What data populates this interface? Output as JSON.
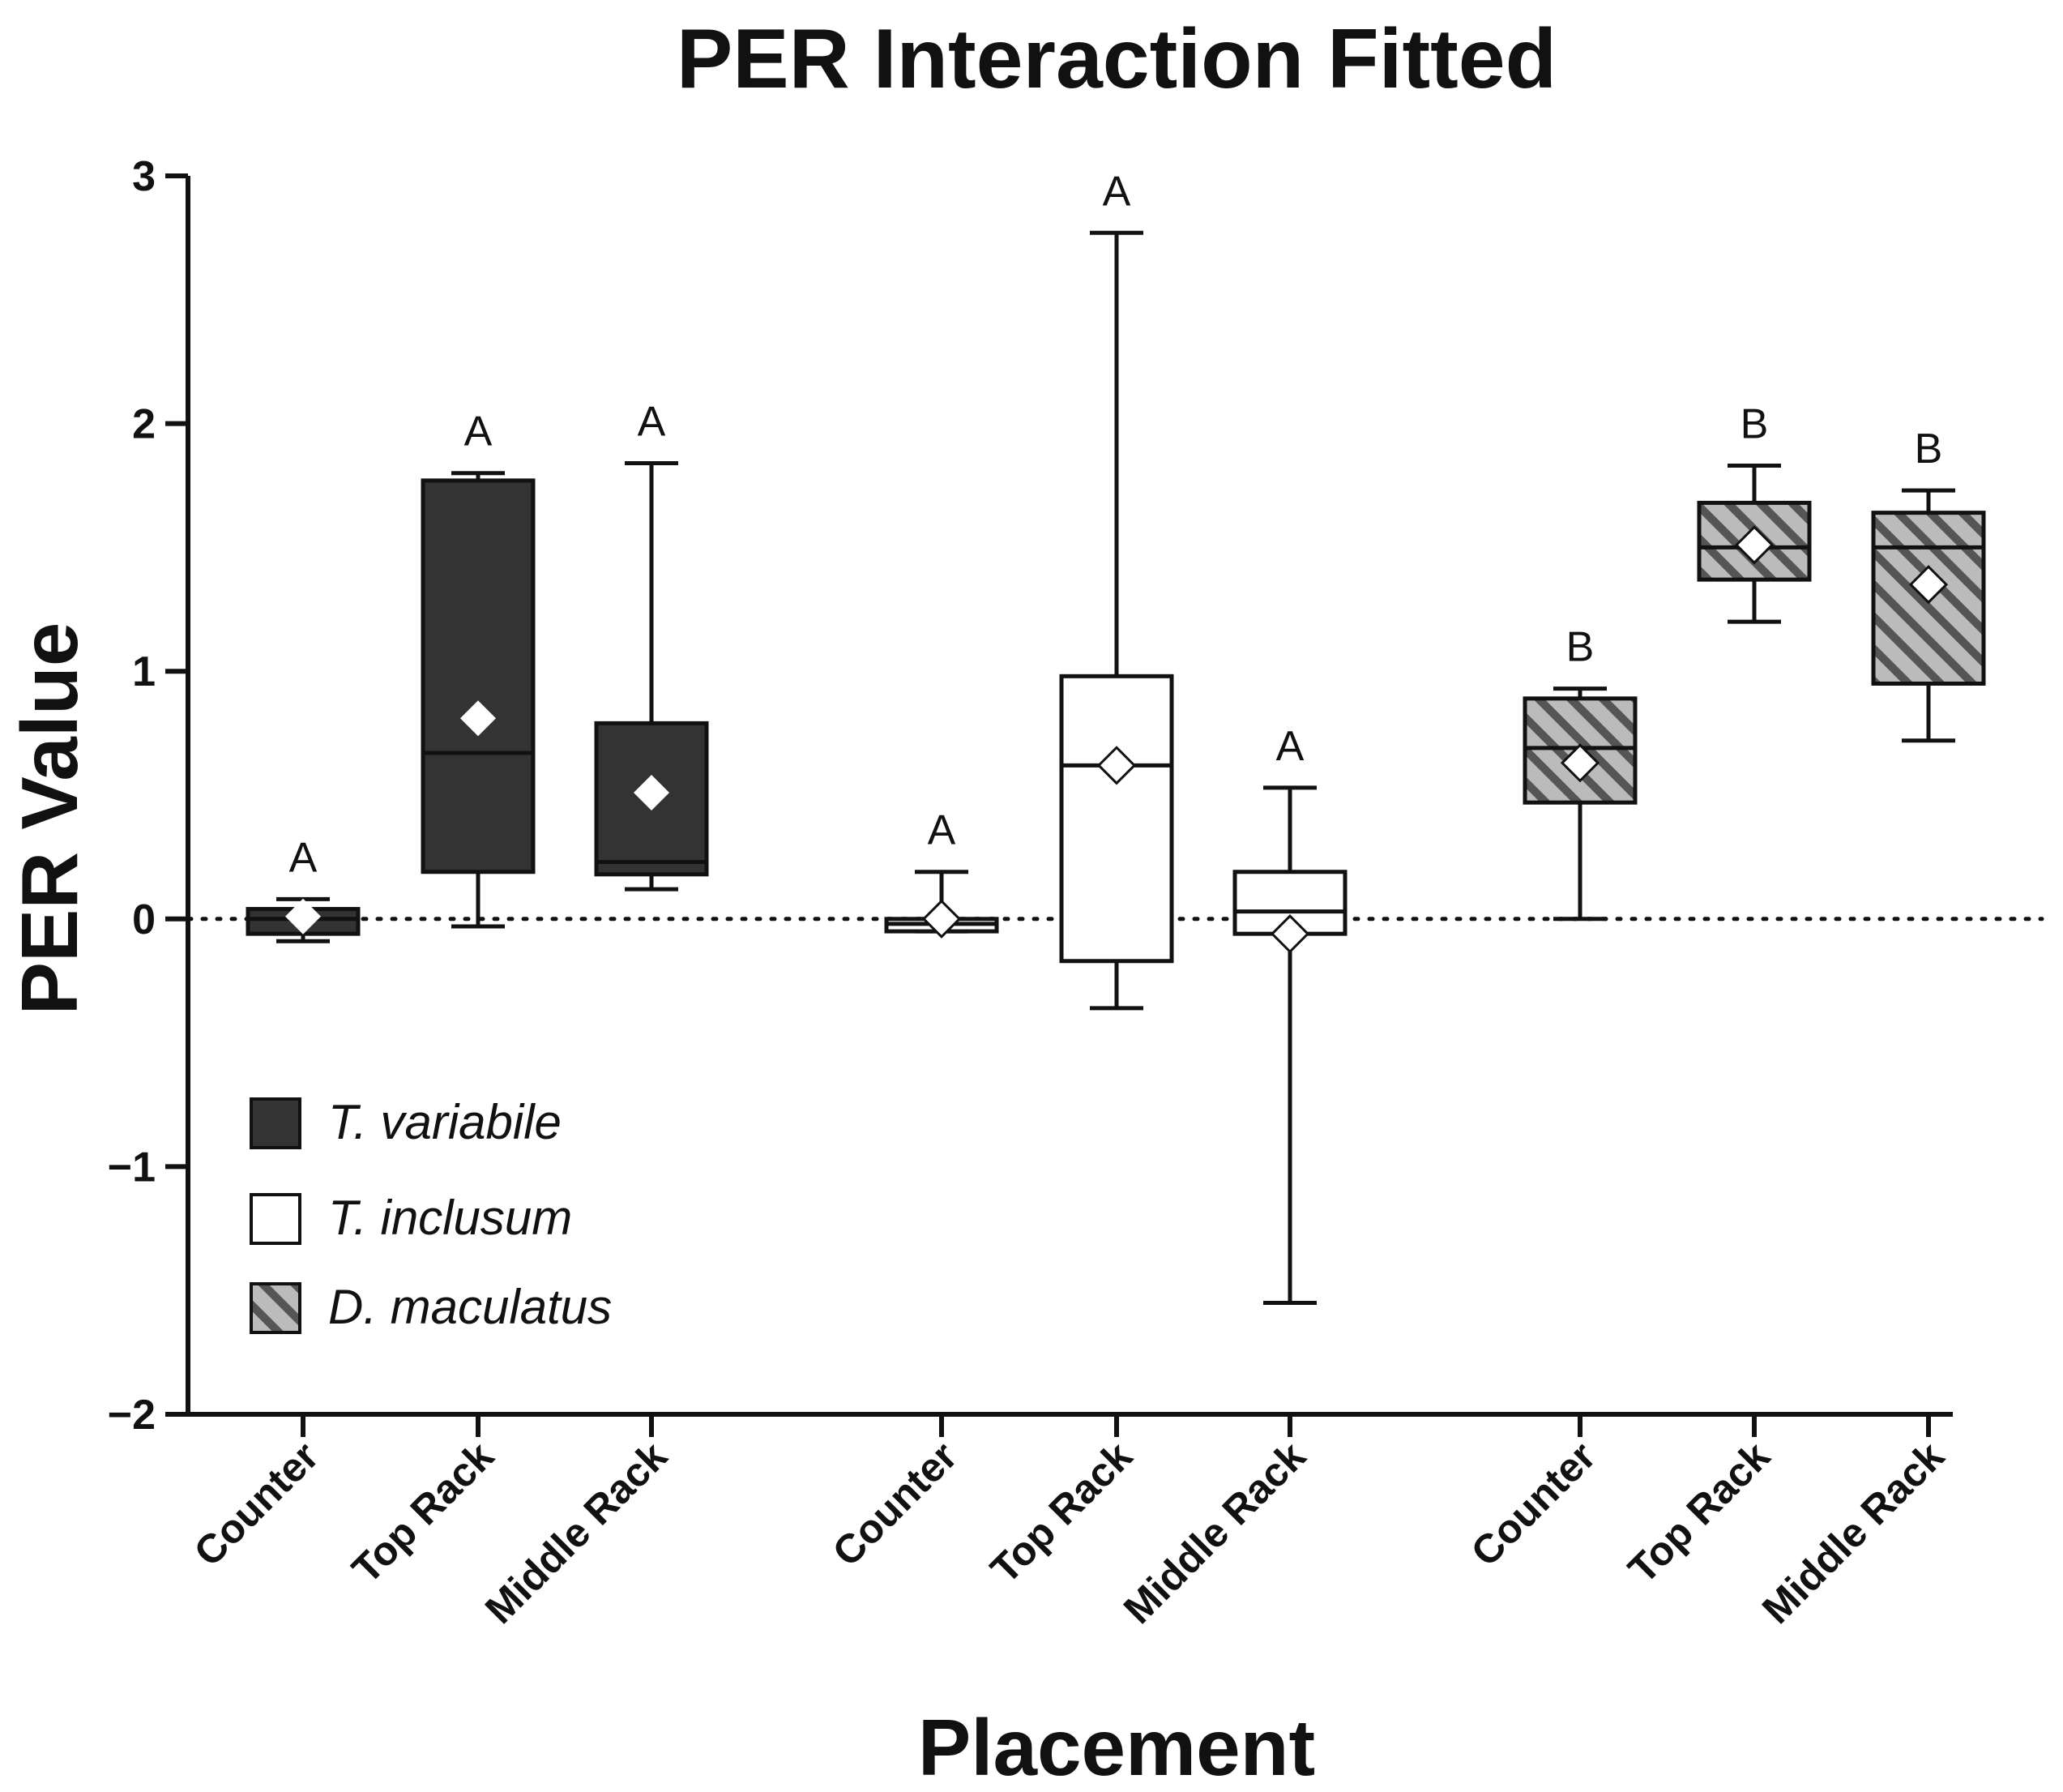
{
  "chart_data": {
    "type": "box",
    "title": "PER Interaction Fitted",
    "xlabel": "Placement",
    "ylabel": "PER Value",
    "ylim": [
      -2,
      3
    ],
    "yticks": [
      {
        "value": 3,
        "label": "3"
      },
      {
        "value": 2,
        "label": "2"
      },
      {
        "value": 1,
        "label": "1"
      },
      {
        "value": 0,
        "label": "0"
      },
      {
        "value": -1,
        "label": "−1"
      },
      {
        "value": -2,
        "label": "−2"
      }
    ],
    "reference_line": {
      "y": 0,
      "style": "dotted"
    },
    "legend_position": "bottom-left",
    "colors": {
      "t_variabile_fill": "#333333",
      "t_inclusum_fill": "#ffffff",
      "d_maculatus_fill": "#bbbbbb",
      "d_maculatus_hatch": "#555555",
      "line": "#111111",
      "mean_marker": "#ffffff"
    },
    "series": [
      {
        "name": "T. variabile",
        "fill": "dark",
        "boxes": [
          {
            "category": "Counter",
            "min": -0.09,
            "q1": -0.06,
            "median": 0.0,
            "q3": 0.04,
            "max": 0.08,
            "mean": 0.01,
            "letter": "A"
          },
          {
            "category": "Top Rack",
            "min": -0.03,
            "q1": 0.19,
            "median": 0.67,
            "q3": 1.77,
            "max": 1.8,
            "mean": 0.81,
            "letter": "A"
          },
          {
            "category": "Middle Rack",
            "min": 0.12,
            "q1": 0.18,
            "median": 0.23,
            "q3": 0.79,
            "max": 1.84,
            "mean": 0.51,
            "letter": "A"
          }
        ]
      },
      {
        "name": "T. inclusum",
        "fill": "white",
        "boxes": [
          {
            "category": "Counter",
            "min": -0.05,
            "q1": -0.05,
            "median": -0.02,
            "q3": 0.0,
            "max": 0.19,
            "mean": 0.0,
            "letter": "A"
          },
          {
            "category": "Top Rack",
            "min": -0.36,
            "q1": -0.17,
            "median": 0.62,
            "q3": 0.98,
            "max": 2.77,
            "mean": 0.62,
            "letter": "A"
          },
          {
            "category": "Middle Rack",
            "min": -1.55,
            "q1": -0.06,
            "median": 0.03,
            "q3": 0.19,
            "max": 0.53,
            "mean": -0.06,
            "letter": "A"
          }
        ]
      },
      {
        "name": "D. maculatus",
        "fill": "hatched",
        "boxes": [
          {
            "category": "Counter",
            "min": 0.0,
            "q1": 0.47,
            "median": 0.69,
            "q3": 0.89,
            "max": 0.93,
            "mean": 0.63,
            "letter": "B"
          },
          {
            "category": "Top Rack",
            "min": 1.2,
            "q1": 1.37,
            "median": 1.5,
            "q3": 1.68,
            "max": 1.83,
            "mean": 1.51,
            "letter": "B"
          },
          {
            "category": "Middle Rack",
            "min": 0.72,
            "q1": 0.95,
            "median": 1.5,
            "q3": 1.64,
            "max": 1.73,
            "mean": 1.35,
            "letter": "B"
          }
        ]
      }
    ]
  }
}
